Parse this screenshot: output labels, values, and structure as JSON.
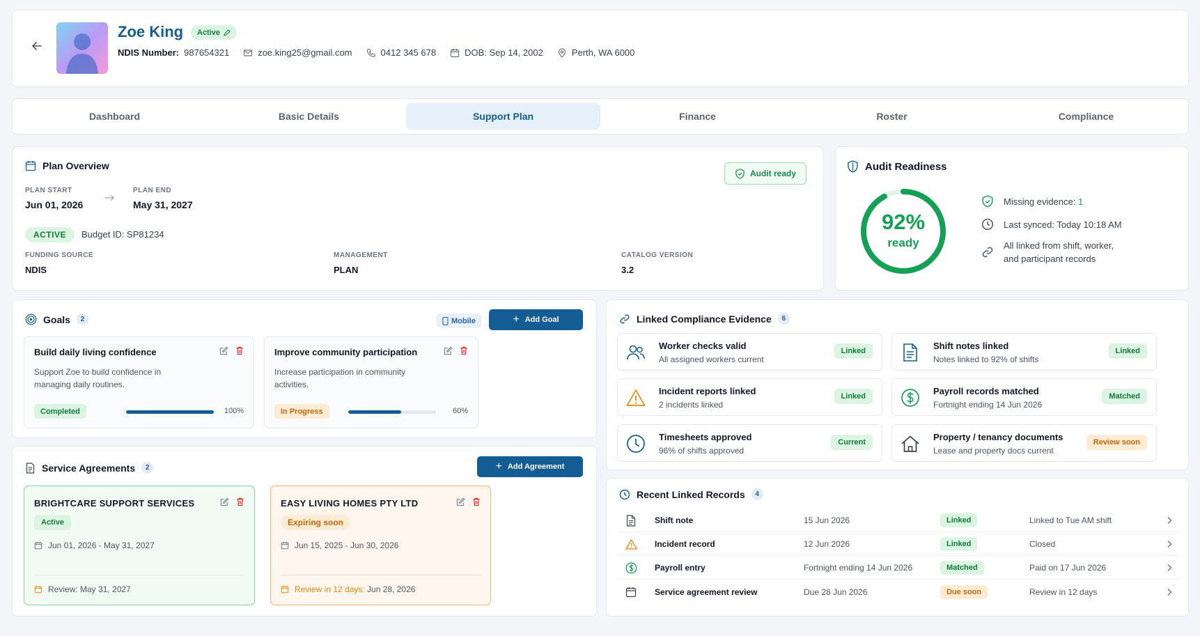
{
  "header": {
    "name": "Zoe King",
    "status": "Active",
    "ndis_label": "NDIS Number:",
    "ndis_number": "987654321",
    "email": "zoe.king25@gmail.com",
    "phone": "0412 345 678",
    "dob": "DOB: Sep 14, 2002",
    "location": "Perth, WA 6000"
  },
  "tabs": [
    {
      "label": "Dashboard"
    },
    {
      "label": "Basic Details"
    },
    {
      "label": "Support Plan"
    },
    {
      "label": "Finance"
    },
    {
      "label": "Roster"
    },
    {
      "label": "Compliance"
    }
  ],
  "plan": {
    "title": "Plan Overview",
    "audit_button": "Audit ready",
    "start_label": "PLAN START",
    "start_value": "Jun 01, 2026",
    "end_label": "PLAN END",
    "end_value": "May 31, 2027",
    "status": "ACTIVE",
    "budget": "Budget ID: SP81234",
    "funding_label": "FUNDING SOURCE",
    "funding_value": "NDIS",
    "management_label": "MANAGEMENT",
    "management_value": "PLAN",
    "catalog_label": "CATALOG VERSION",
    "catalog_value": "3.2"
  },
  "audit": {
    "title": "Audit Readiness",
    "percent": "92%",
    "percent_value": 0.92,
    "sub": "ready",
    "missing_label": "Missing evidence: ",
    "missing_value": "1",
    "synced": "Last synced: Today 10:18 AM",
    "linked_line1": "All linked from shift, worker,",
    "linked_line2": "and participant records"
  },
  "goals": {
    "title": "Goals",
    "count": "2",
    "mobile": "Mobile",
    "add": "Add Goal",
    "items": [
      {
        "title": "Build daily living confidence",
        "desc": "Support Zoe to build confidence in managing daily routines.",
        "status": "Completed",
        "progress": 1.0,
        "pct": "100%"
      },
      {
        "title": "Improve community participation",
        "desc": "Increase participation in community activities.",
        "status": "In Progress",
        "progress": 0.6,
        "pct": "60%"
      }
    ]
  },
  "agreements": {
    "title": "Service Agreements",
    "count": "2",
    "add": "Add Agreement",
    "items": [
      {
        "title": "BRIGHTCARE SUPPORT SERVICES",
        "status": "Active",
        "dates": "Jun 01, 2026 - May 31, 2027",
        "review": "Review: May 31, 2027"
      },
      {
        "title": "EASY LIVING HOMES PTY LTD",
        "status": "Expiring soon",
        "dates": "Jun 15, 2025 - Jun 30, 2026",
        "review_prefix": "Review in 12 days:",
        "review_date": " Jun 28, 2026"
      }
    ]
  },
  "evidence": {
    "title": "Linked Compliance Evidence",
    "count": "6",
    "items": [
      {
        "title": "Worker checks valid",
        "sub": "All assigned workers current",
        "badge": "Linked",
        "icon": "users-icon"
      },
      {
        "title": "Shift notes linked",
        "sub": "Notes linked to 92% of shifts",
        "badge": "Linked",
        "icon": "document-icon"
      },
      {
        "title": "Incident reports linked",
        "sub": "2 incidents linked",
        "badge": "Linked",
        "icon": "warning-icon"
      },
      {
        "title": "Payroll records matched",
        "sub": "Fortnight ending 14 Jun 2026",
        "badge": "Matched",
        "icon": "dollar-icon"
      },
      {
        "title": "Timesheets approved",
        "sub": "96% of shifts approved",
        "badge": "Current",
        "icon": "clock-icon"
      },
      {
        "title": "Property / tenancy documents",
        "sub": "Lease and property docs current",
        "badge": "Review soon",
        "icon": "home-icon"
      }
    ]
  },
  "records": {
    "title": "Recent Linked Records",
    "count": "4",
    "items": [
      {
        "name": "Shift note",
        "date": "15 Jun 2026",
        "badge": "Linked",
        "note": "Linked to Tue AM shift"
      },
      {
        "name": "Incident record",
        "date": "12 Jun 2026",
        "badge": "Linked",
        "note": "Closed"
      },
      {
        "name": "Payroll entry",
        "date": "Fortnight ending 14 Jun 2026",
        "badge": "Matched",
        "note": "Paid on 17 Jun 2026"
      },
      {
        "name": "Service agreement review",
        "date": "Due 28 Jun 2026",
        "badge": "Due soon",
        "note": "Review in 12 days"
      }
    ]
  },
  "colors": {
    "brand": "#145c94",
    "success": "#16a055",
    "warning": "#e8890f",
    "danger": "#dc2626"
  }
}
